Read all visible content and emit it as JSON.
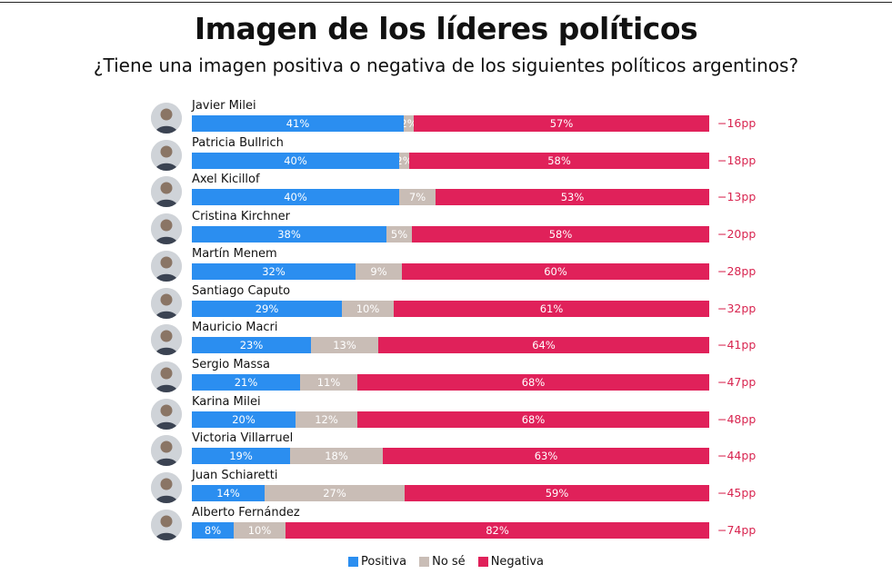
{
  "title": "Imagen de los líderes políticos",
  "subtitle": "¿Tiene una imagen positiva o negativa de los siguientes políticos argentinos?",
  "colors": {
    "positiva": "#2b8ef0",
    "no_se": "#c9bdb6",
    "negativa": "#e0215a",
    "net": "#d8244f"
  },
  "legend": [
    {
      "label": "Positiva",
      "color": "#2b8ef0"
    },
    {
      "label": "No sé",
      "color": "#c9bdb6"
    },
    {
      "label": "Negativa",
      "color": "#e0215a"
    }
  ],
  "chart_data": {
    "type": "bar",
    "orientation": "horizontal",
    "stacked": true,
    "normalized": true,
    "title": "Imagen de los líderes políticos",
    "subtitle": "¿Tiene una imagen positiva o negativa de los siguientes políticos argentinos?",
    "legend_position": "bottom",
    "categories": [
      "Javier Milei",
      "Patricia Bullrich",
      "Axel Kicillof",
      "Cristina Kirchner",
      "Martín Menem",
      "Santiago Caputo",
      "Mauricio Macri",
      "Sergio Massa",
      "Karina Milei",
      "Victoria Villarruel",
      "Juan Schiaretti",
      "Alberto Fernández"
    ],
    "series": [
      {
        "name": "Positiva",
        "values": [
          41,
          40,
          40,
          38,
          32,
          29,
          23,
          21,
          20,
          19,
          14,
          8
        ]
      },
      {
        "name": "No sé",
        "values": [
          2,
          2,
          7,
          5,
          9,
          10,
          13,
          11,
          12,
          18,
          27,
          10
        ]
      },
      {
        "name": "Negativa",
        "values": [
          57,
          58,
          53,
          58,
          60,
          61,
          64,
          68,
          68,
          63,
          59,
          82
        ]
      }
    ],
    "bar_labels": {
      "Positiva": [
        "41%",
        "40%",
        "40%",
        "38%",
        "32%",
        "29%",
        "23%",
        "21%",
        "20%",
        "19%",
        "14%",
        "8%"
      ],
      "No sé": [
        "2%",
        "2%",
        "7%",
        "5%",
        "9%",
        "10%",
        "13%",
        "11%",
        "12%",
        "18%",
        "27%",
        "10%"
      ],
      "Negativa": [
        "57%",
        "58%",
        "53%",
        "58%",
        "60%",
        "61%",
        "64%",
        "68%",
        "68%",
        "63%",
        "59%",
        "82%"
      ]
    },
    "net_labels": [
      "−16pp",
      "−18pp",
      "−13pp",
      "−20pp",
      "−28pp",
      "−32pp",
      "−41pp",
      "−47pp",
      "−48pp",
      "−44pp",
      "−45pp",
      "−74pp"
    ]
  }
}
